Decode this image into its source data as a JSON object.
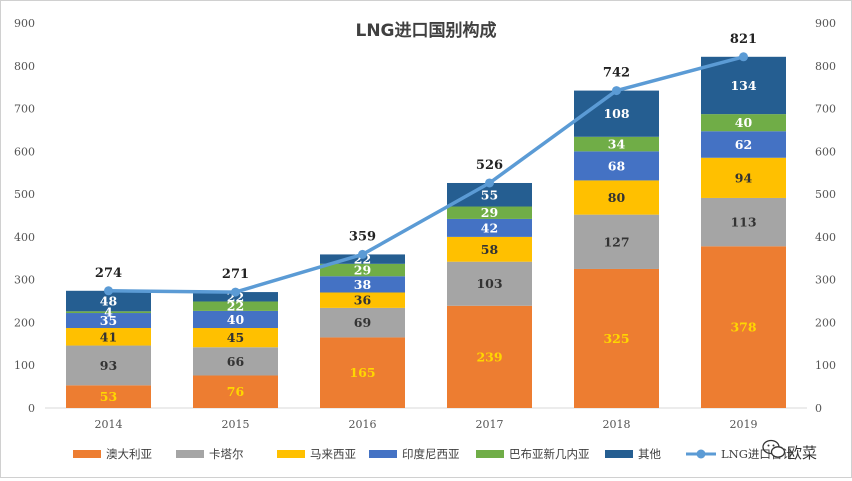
{
  "chart_data": {
    "type": "bar",
    "stacked": true,
    "title": "LNG进口国别构成",
    "categories": [
      "2014",
      "2015",
      "2016",
      "2017",
      "2018",
      "2019"
    ],
    "series": [
      {
        "name": "澳大利亚",
        "color": "#ED7D31",
        "label_color": "#FFD700",
        "values": [
          53,
          76,
          165,
          239,
          325,
          378
        ]
      },
      {
        "name": "卡塔尔",
        "color": "#A5A5A5",
        "label_color": "#333333",
        "values": [
          93,
          66,
          69,
          103,
          127,
          113
        ]
      },
      {
        "name": "马来西亚",
        "color": "#FFC000",
        "label_color": "#333333",
        "values": [
          41,
          45,
          36,
          58,
          80,
          94
        ]
      },
      {
        "name": "印度尼西亚",
        "color": "#4472C4",
        "label_color": "#FFFFFF",
        "values": [
          35,
          40,
          38,
          42,
          68,
          62
        ]
      },
      {
        "name": "巴布亚新几内亚",
        "color": "#70AD47",
        "label_color": "#FFFFFF",
        "values": [
          4,
          22,
          29,
          29,
          34,
          40
        ]
      },
      {
        "name": "其他",
        "color": "#255E91",
        "label_color": "#FFFFFF",
        "values": [
          48,
          22,
          22,
          55,
          108,
          134
        ]
      }
    ],
    "line": {
      "name": "LNG进口合计",
      "color": "#5B9BD5",
      "values": [
        274,
        271,
        359,
        526,
        742,
        821
      ]
    },
    "ylim": [
      0,
      900
    ],
    "yticks": [
      0,
      100,
      200,
      300,
      400,
      500,
      600,
      700,
      800,
      900
    ],
    "secondary_ylim": [
      0,
      900
    ],
    "grid": false,
    "legend_position": "bottom"
  },
  "watermark": {
    "text": "欧菜",
    "icon": "wechat-icon"
  }
}
